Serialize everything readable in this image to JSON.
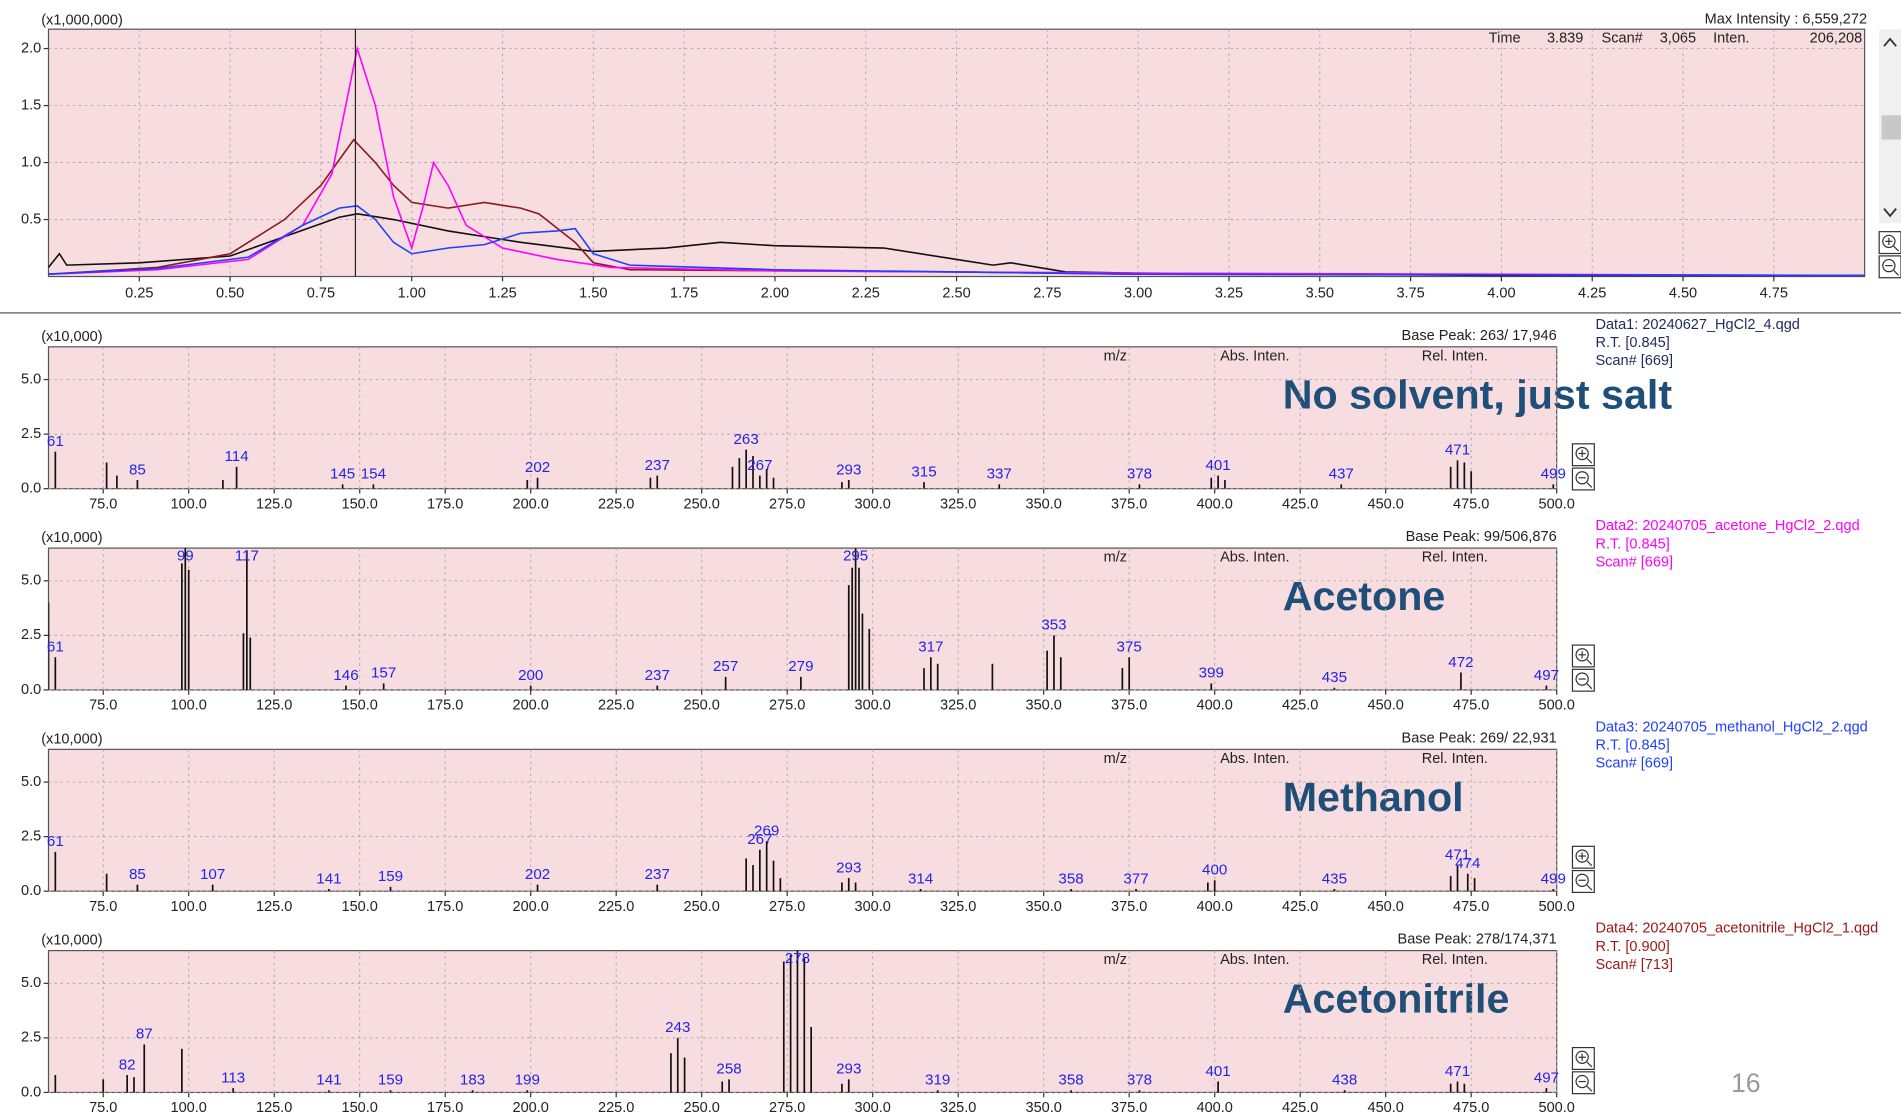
{
  "chromatogram": {
    "type": "line",
    "y_unit": "(x1,000,000)",
    "max_intensity": "Max Intensity : 6,559,272",
    "cursor_info": {
      "time_label": "Time",
      "time": "3.839",
      "scan_label": "Scan#",
      "scan": "3,065",
      "inten_label": "Inten.",
      "inten": "206,208"
    },
    "cursor": 0.845,
    "xlim": [
      0,
      5.0
    ],
    "ylim": [
      0,
      2.17
    ],
    "xticks": [
      0.25,
      {
        "value": 0.5,
        "label": "0.50"
      },
      0.75,
      {
        "value": 1,
        "label": "1.00"
      },
      1.25,
      {
        "value": 1.5,
        "label": "1.50"
      },
      1.75,
      {
        "value": 2,
        "label": "2.00"
      },
      2.25,
      {
        "value": 2.5,
        "label": "2.50"
      },
      2.75,
      {
        "value": 3,
        "label": "3.00"
      },
      3.25,
      {
        "value": 3.5,
        "label": "3.50"
      },
      3.75,
      {
        "value": 4,
        "label": "4.00"
      },
      4.25,
      {
        "value": 4.5,
        "label": "4.50"
      },
      4.75
    ],
    "yticks": [
      0.5,
      {
        "value": 1,
        "label": "1.0"
      },
      1.5,
      {
        "value": 2,
        "label": "2.0"
      }
    ],
    "grid": true,
    "series": [
      {
        "color": "#111111",
        "x": [
          0,
          0.03,
          0.05,
          0.25,
          0.5,
          0.65,
          0.8,
          0.85,
          0.95,
          1.1,
          1.3,
          1.5,
          1.7,
          1.85,
          2.0,
          2.3,
          2.5,
          2.6,
          2.65,
          2.8,
          3.0,
          4.0,
          5.0
        ],
        "values": [
          0.08,
          0.2,
          0.1,
          0.12,
          0.18,
          0.35,
          0.52,
          0.55,
          0.5,
          0.4,
          0.3,
          0.22,
          0.25,
          0.3,
          0.27,
          0.25,
          0.15,
          0.1,
          0.12,
          0.04,
          0.03,
          0.01,
          0.01
        ]
      },
      {
        "color": "#8b1a1a",
        "x": [
          0,
          0.3,
          0.5,
          0.65,
          0.75,
          0.84,
          0.9,
          0.95,
          1.0,
          1.1,
          1.2,
          1.3,
          1.35,
          1.45,
          1.5,
          1.6,
          2.0,
          2.5,
          3.0,
          5.0
        ],
        "values": [
          0.02,
          0.08,
          0.2,
          0.5,
          0.8,
          1.2,
          1.0,
          0.8,
          0.65,
          0.6,
          0.65,
          0.6,
          0.55,
          0.3,
          0.12,
          0.06,
          0.05,
          0.04,
          0.02,
          0.01
        ]
      },
      {
        "color": "#ff00ff",
        "x": [
          0,
          0.3,
          0.55,
          0.7,
          0.78,
          0.85,
          0.9,
          0.95,
          1.0,
          1.03,
          1.06,
          1.1,
          1.15,
          1.25,
          1.4,
          1.55,
          2.0,
          3.0,
          5.0
        ],
        "values": [
          0.02,
          0.06,
          0.15,
          0.45,
          0.9,
          2.0,
          1.5,
          0.7,
          0.25,
          0.6,
          1.0,
          0.8,
          0.45,
          0.25,
          0.15,
          0.08,
          0.05,
          0.03,
          0.01
        ]
      },
      {
        "color": "#1f3fff",
        "x": [
          0,
          0.3,
          0.55,
          0.7,
          0.8,
          0.85,
          0.9,
          0.95,
          1.0,
          1.1,
          1.2,
          1.3,
          1.4,
          1.45,
          1.5,
          1.6,
          2.0,
          2.5,
          3.0,
          5.0
        ],
        "values": [
          0.02,
          0.07,
          0.17,
          0.45,
          0.6,
          0.62,
          0.5,
          0.3,
          0.2,
          0.25,
          0.28,
          0.38,
          0.4,
          0.42,
          0.2,
          0.1,
          0.06,
          0.04,
          0.02,
          0.01
        ]
      }
    ]
  },
  "spectra": [
    {
      "type": "bar",
      "y_unit": "(x10,000)",
      "base_peak": "Base Peak: 263/ 17,946",
      "columns": [
        "m/z",
        "Abs. Inten.",
        "Rel. Inten."
      ],
      "annotation": "No solvent, just salt",
      "info": {
        "data": "Data1: 20240627_HgCl2_4.qgd",
        "rt": "R.T. [0.845]",
        "scan": "Scan# [669]",
        "color": "#1f2a5a"
      },
      "xlim": [
        59,
        500
      ],
      "ylim": [
        0,
        6.5
      ],
      "xticks": [
        {
          "value": 75,
          "label": "75.0"
        },
        {
          "value": 100,
          "label": "100.0"
        },
        {
          "value": 125,
          "label": "125.0"
        },
        {
          "value": 150,
          "label": "150.0"
        },
        {
          "value": 175,
          "label": "175.0"
        },
        {
          "value": 200,
          "label": "200.0"
        },
        {
          "value": 225,
          "label": "225.0"
        },
        {
          "value": 250,
          "label": "250.0"
        },
        {
          "value": 275,
          "label": "275.0"
        },
        {
          "value": 300,
          "label": "300.0"
        },
        {
          "value": 325,
          "label": "325.0"
        },
        {
          "value": 350,
          "label": "350.0"
        },
        {
          "value": 375,
          "label": "375.0"
        },
        {
          "value": 400,
          "label": "400.0"
        },
        {
          "value": 425,
          "label": "425.0"
        },
        {
          "value": 450,
          "label": "450.0"
        },
        {
          "value": 475,
          "label": "475.0"
        },
        {
          "value": 500,
          "label": "500.0"
        }
      ],
      "yticks": [
        {
          "value": 0,
          "label": "0.0"
        },
        2.5,
        {
          "value": 5,
          "label": "5.0"
        }
      ],
      "labeled_peaks": {
        "mz": [
          61,
          85,
          114,
          145,
          154,
          202,
          237,
          263,
          267,
          293,
          315,
          337,
          378,
          401,
          437,
          471,
          499
        ],
        "intensity": [
          1.7,
          0.4,
          1.0,
          0.2,
          0.2,
          0.5,
          0.6,
          1.79,
          0.6,
          0.4,
          0.3,
          0.2,
          0.2,
          0.6,
          0.2,
          1.3,
          0.2
        ]
      },
      "other_peaks": {
        "mz": [
          76,
          79,
          110,
          199,
          235,
          259,
          261,
          265,
          269,
          271,
          291,
          399,
          403,
          469,
          473,
          475
        ],
        "intensity": [
          1.2,
          0.6,
          0.4,
          0.4,
          0.5,
          1.0,
          1.4,
          1.5,
          0.9,
          0.5,
          0.3,
          0.5,
          0.4,
          1.0,
          1.2,
          0.8
        ]
      }
    },
    {
      "type": "bar",
      "y_unit": "(x10,000)",
      "base_peak": "Base Peak: 99/506,876",
      "columns": [
        "m/z",
        "Abs. Inten.",
        "Rel. Inten."
      ],
      "annotation": "Acetone",
      "info": {
        "data": "Data2: 20240705_acetone_HgCl2_2.qgd",
        "rt": "R.T. [0.845]",
        "scan": "Scan# [669]",
        "color": "#ff00ff"
      },
      "xlim": [
        59,
        500
      ],
      "ylim": [
        0,
        6.5
      ],
      "xticks": [
        {
          "value": 75,
          "label": "75.0"
        },
        {
          "value": 100,
          "label": "100.0"
        },
        {
          "value": 125,
          "label": "125.0"
        },
        {
          "value": 150,
          "label": "150.0"
        },
        {
          "value": 175,
          "label": "175.0"
        },
        {
          "value": 200,
          "label": "200.0"
        },
        {
          "value": 225,
          "label": "225.0"
        },
        {
          "value": 250,
          "label": "250.0"
        },
        {
          "value": 275,
          "label": "275.0"
        },
        {
          "value": 300,
          "label": "300.0"
        },
        {
          "value": 325,
          "label": "325.0"
        },
        {
          "value": 350,
          "label": "350.0"
        },
        {
          "value": 375,
          "label": "375.0"
        },
        {
          "value": 400,
          "label": "400.0"
        },
        {
          "value": 425,
          "label": "425.0"
        },
        {
          "value": 450,
          "label": "450.0"
        },
        {
          "value": 475,
          "label": "475.0"
        },
        {
          "value": 500,
          "label": "500.0"
        }
      ],
      "yticks": [
        {
          "value": 0,
          "label": "0.0"
        },
        2.5,
        {
          "value": 5,
          "label": "5.0"
        }
      ],
      "labeled_peaks": {
        "mz": [
          61,
          99,
          117,
          146,
          157,
          200,
          237,
          257,
          279,
          295,
          317,
          353,
          375,
          399,
          435,
          472,
          497
        ],
        "intensity": [
          1.5,
          50.69,
          6.4,
          0.2,
          0.3,
          0.2,
          0.2,
          0.6,
          0.6,
          6.5,
          1.5,
          2.5,
          1.5,
          0.3,
          0.1,
          0.8,
          0.2
        ]
      },
      "other_peaks": {
        "mz": [
          59,
          98,
          100,
          116,
          118,
          293,
          294,
          296,
          297,
          299,
          315,
          319,
          335,
          351,
          355,
          373
        ],
        "intensity": [
          4.0,
          5.8,
          5.5,
          2.6,
          2.4,
          4.8,
          5.6,
          5.6,
          3.5,
          2.8,
          1.0,
          1.2,
          1.2,
          1.8,
          1.5,
          1.0
        ]
      }
    },
    {
      "type": "bar",
      "y_unit": "(x10,000)",
      "base_peak": "Base Peak: 269/ 22,931",
      "columns": [
        "m/z",
        "Abs. Inten.",
        "Rel. Inten."
      ],
      "annotation": "Methanol",
      "info": {
        "data": "Data3: 20240705_methanol_HgCl2_2.qgd",
        "rt": "R.T. [0.845]",
        "scan": "Scan# [669]",
        "color": "#1f3fff"
      },
      "xlim": [
        59,
        500
      ],
      "ylim": [
        0,
        6.5
      ],
      "xticks": [
        {
          "value": 75,
          "label": "75.0"
        },
        {
          "value": 100,
          "label": "100.0"
        },
        {
          "value": 125,
          "label": "125.0"
        },
        {
          "value": 150,
          "label": "150.0"
        },
        {
          "value": 175,
          "label": "175.0"
        },
        {
          "value": 200,
          "label": "200.0"
        },
        {
          "value": 225,
          "label": "225.0"
        },
        {
          "value": 250,
          "label": "250.0"
        },
        {
          "value": 275,
          "label": "275.0"
        },
        {
          "value": 300,
          "label": "300.0"
        },
        {
          "value": 325,
          "label": "325.0"
        },
        {
          "value": 350,
          "label": "350.0"
        },
        {
          "value": 375,
          "label": "375.0"
        },
        {
          "value": 400,
          "label": "400.0"
        },
        {
          "value": 425,
          "label": "425.0"
        },
        {
          "value": 450,
          "label": "450.0"
        },
        {
          "value": 475,
          "label": "475.0"
        },
        {
          "value": 500,
          "label": "500.0"
        }
      ],
      "yticks": [
        {
          "value": 0,
          "label": "0.0"
        },
        2.5,
        {
          "value": 5,
          "label": "5.0"
        }
      ],
      "labeled_peaks": {
        "mz": [
          61,
          85,
          107,
          141,
          159,
          202,
          237,
          267,
          269,
          293,
          314,
          358,
          377,
          400,
          435,
          471,
          474,
          499
        ],
        "intensity": [
          1.8,
          0.3,
          0.3,
          0.1,
          0.2,
          0.3,
          0.3,
          1.9,
          2.29,
          0.6,
          0.1,
          0.1,
          0.1,
          0.5,
          0.1,
          1.2,
          0.8,
          0.1
        ]
      },
      "other_peaks": {
        "mz": [
          76,
          263,
          265,
          271,
          273,
          291,
          295,
          398,
          469,
          476
        ],
        "intensity": [
          0.8,
          1.5,
          1.2,
          1.4,
          0.6,
          0.4,
          0.4,
          0.4,
          0.7,
          0.6
        ]
      }
    },
    {
      "type": "bar",
      "y_unit": "(x10,000)",
      "base_peak": "Base Peak: 278/174,371",
      "columns": [
        "m/z",
        "Abs. Inten.",
        "Rel. Inten."
      ],
      "annotation": "Acetonitrile",
      "info": {
        "data": "Data4: 20240705_acetonitrile_HgCl2_1.qgd",
        "rt": "R.T. [0.900]",
        "scan": "Scan# [713]",
        "color": "#a01818"
      },
      "xlim": [
        59,
        500
      ],
      "ylim": [
        0,
        6.5
      ],
      "xticks": [
        {
          "value": 75,
          "label": "75.0"
        },
        {
          "value": 100,
          "label": "100.0"
        },
        {
          "value": 125,
          "label": "125.0"
        },
        {
          "value": 150,
          "label": "150.0"
        },
        {
          "value": 175,
          "label": "175.0"
        },
        {
          "value": 200,
          "label": "200.0"
        },
        {
          "value": 225,
          "label": "225.0"
        },
        {
          "value": 250,
          "label": "250.0"
        },
        {
          "value": 275,
          "label": "275.0"
        },
        {
          "value": 300,
          "label": "300.0"
        },
        {
          "value": 325,
          "label": "325.0"
        },
        {
          "value": 350,
          "label": "350.0"
        },
        {
          "value": 375,
          "label": "375.0"
        },
        {
          "value": 400,
          "label": "400.0"
        },
        {
          "value": 425,
          "label": "425.0"
        },
        {
          "value": 450,
          "label": "450.0"
        },
        {
          "value": 475,
          "label": "475.0"
        },
        {
          "value": 500,
          "label": "500.0"
        }
      ],
      "yticks": [
        {
          "value": 0,
          "label": "0.0"
        },
        2.5,
        {
          "value": 5,
          "label": "5.0"
        }
      ],
      "labeled_peaks": {
        "mz": [
          82,
          87,
          113,
          141,
          159,
          183,
          199,
          243,
          258,
          278,
          293,
          319,
          358,
          378,
          401,
          438,
          471,
          497
        ],
        "intensity": [
          0.8,
          2.2,
          0.2,
          0.1,
          0.1,
          0.1,
          0.1,
          2.5,
          0.6,
          17.44,
          0.6,
          0.1,
          0.1,
          0.1,
          0.5,
          0.1,
          0.5,
          0.2
        ]
      },
      "other_peaks": {
        "mz": [
          61,
          75,
          84,
          98,
          241,
          245,
          256,
          274,
          276,
          280,
          282,
          291,
          469,
          473
        ],
        "intensity": [
          0.8,
          0.6,
          0.7,
          2.0,
          1.8,
          1.6,
          0.5,
          6.0,
          6.3,
          6.2,
          3.0,
          0.4,
          0.4,
          0.4
        ]
      }
    }
  ],
  "page_number": "16"
}
